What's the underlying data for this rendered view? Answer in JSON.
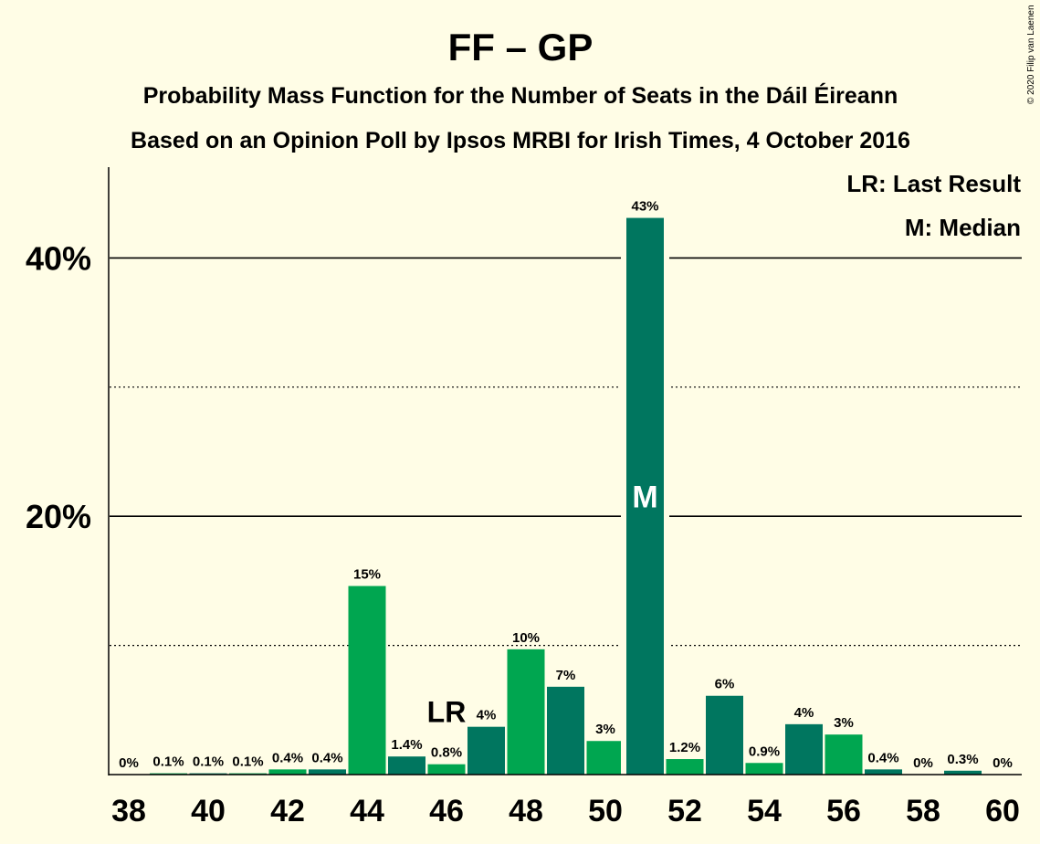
{
  "title": "FF – GP",
  "subtitle_1": "Probability Mass Function for the Number of Seats in the Dáil Éireann",
  "subtitle_2": "Based on an Opinion Poll by Ipsos MRBI for Irish Times, 4 October 2016",
  "copyright": "© 2020 Filip van Laenen",
  "legend": {
    "last_result": "LR: Last Result",
    "median": "M: Median"
  },
  "colors": {
    "background": "#FFFDE6",
    "bar_dark": "#00765F",
    "bar_light": "#00A650"
  },
  "chart_data": {
    "type": "bar",
    "x": [
      38,
      39,
      40,
      41,
      42,
      43,
      44,
      45,
      46,
      47,
      48,
      49,
      50,
      51,
      52,
      53,
      54,
      55,
      56,
      57,
      58,
      59,
      60
    ],
    "values": [
      0,
      0.1,
      0.1,
      0.1,
      0.4,
      0.4,
      14.6,
      1.4,
      0.8,
      3.7,
      9.7,
      6.8,
      2.6,
      43.1,
      1.2,
      6.1,
      0.9,
      3.9,
      3.1,
      0.4,
      0,
      0.3,
      0
    ],
    "data_labels": [
      "0%",
      "0.1%",
      "0.1%",
      "0.1%",
      "0.4%",
      "0.4%",
      "15%",
      "1.4%",
      "0.8%",
      "4%",
      "10%",
      "7%",
      "3%",
      "43%",
      "1.2%",
      "6%",
      "0.9%",
      "4%",
      "3%",
      "0.4%",
      "0%",
      "0.3%",
      "0%"
    ],
    "bar_shade": [
      "dark",
      "light",
      "dark",
      "light",
      "light",
      "dark",
      "light",
      "dark",
      "light",
      "dark",
      "light",
      "dark",
      "light",
      "dark",
      "light",
      "dark",
      "light",
      "dark",
      "light",
      "dark",
      "light",
      "dark",
      "light"
    ],
    "x_tick_labels": [
      "38",
      "40",
      "42",
      "44",
      "46",
      "48",
      "50",
      "52",
      "54",
      "56",
      "58",
      "60"
    ],
    "y_tick_labels": [
      "20%",
      "40%"
    ],
    "ylim": [
      0,
      47
    ],
    "grid_solid": [
      20,
      40
    ],
    "grid_dotted": [
      10,
      30
    ],
    "last_result": {
      "seat": 46,
      "label": "LR"
    },
    "median": {
      "seat": 51,
      "label": "M"
    },
    "legend_position": "top-right"
  }
}
